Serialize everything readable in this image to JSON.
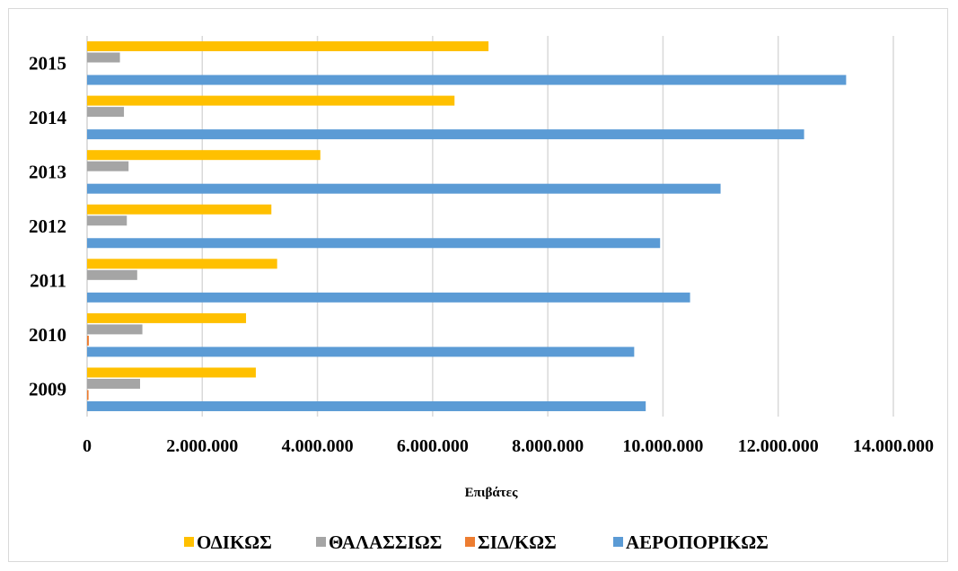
{
  "chart_data": {
    "type": "bar",
    "orientation": "horizontal",
    "categories": [
      "2009",
      "2010",
      "2011",
      "2012",
      "2013",
      "2014",
      "2015"
    ],
    "series": [
      {
        "name": "ΟΔΙΚΩΣ",
        "color": "#FFC000",
        "values": [
          2930000,
          2760000,
          3300000,
          3200000,
          4050000,
          6380000,
          6970000
        ]
      },
      {
        "name": "ΘΑΛΑΣΣΙΩΣ",
        "color": "#A5A5A5",
        "values": [
          920000,
          960000,
          870000,
          690000,
          720000,
          640000,
          570000
        ]
      },
      {
        "name": "ΣΙΔ/ΚΩΣ",
        "color": "#ED7D31",
        "values": [
          25000,
          30000,
          0,
          0,
          0,
          0,
          0
        ]
      },
      {
        "name": "ΑΕΡΟΠΟΡΙΚΩΣ",
        "color": "#5B9BD5",
        "values": [
          9700000,
          9500000,
          10470000,
          9950000,
          11000000,
          12450000,
          13180000
        ]
      }
    ],
    "xlabel": "Επιβάτες",
    "xlim": [
      0,
      14000000
    ],
    "xticks": [
      "0",
      "2.000.000",
      "4.000.000",
      "6.000.000",
      "8.000.000",
      "10.000.000",
      "12.000.000",
      "14.000.000"
    ],
    "grid": true,
    "legend_position": "bottom"
  }
}
